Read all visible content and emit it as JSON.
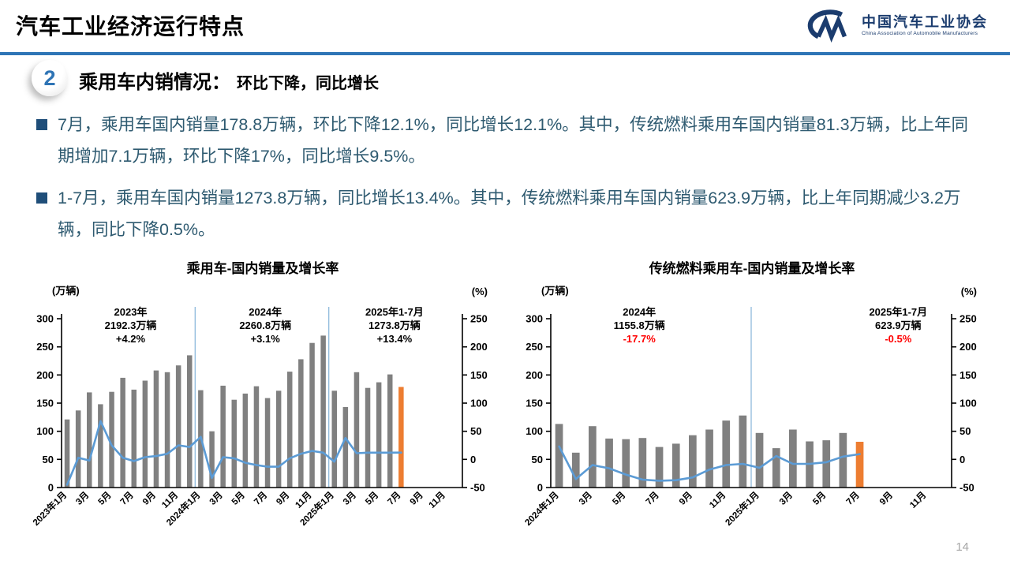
{
  "header": {
    "title": "汽车工业经济运行特点"
  },
  "logo": {
    "mark": "CM-mark",
    "org_cn": "中国汽车工业协会",
    "org_en": "China Association of Automobile Manufacturers"
  },
  "section": {
    "number": "2",
    "title": "乘用车内销情况：",
    "subtitle": "环比下降，同比增长"
  },
  "bullets": [
    {
      "text": "7月，乘用车国内销量178.8万辆，环比下降12.1%，同比增长12.1%。其中，传统燃料乘用车国内销量81.3万辆，比上年同期增加7.1万辆，环比下降17%，同比增长9.5%。"
    },
    {
      "text": "1-7月，乘用车国内销量1273.8万辆，同比增长13.4%。其中，传统燃料乘用车国内销量623.9万辆，比上年同期减少3.2万辆，同比下降0.5%。"
    }
  ],
  "footer": {
    "page_number": "14"
  },
  "colors": {
    "accent_rule": "#2E75B6",
    "logo_navy": "#1B3C6E",
    "body_text": "#2E5A70",
    "bullet_square": "#1F4E79",
    "bar_gray": "#808080",
    "bar_orange": "#ED7D31",
    "line_blue": "#5B9BD5",
    "separator_blue": "#8FBADC",
    "negative_red": "#FF0000",
    "page_gray": "#A6A6A6"
  },
  "chart_data": [
    {
      "type": "bar",
      "title": "乘用车-国内销量及增长率",
      "unit_left": "(万辆)",
      "unit_right": "(%)",
      "legend_position": "none",
      "grid": false,
      "slots": 36,
      "left_range": [
        0,
        300
      ],
      "right_range": [
        -50,
        250
      ],
      "left_ticks": [
        300,
        250,
        200,
        150,
        100,
        50,
        0
      ],
      "right_ticks": [
        250,
        200,
        150,
        100,
        50,
        0,
        -50
      ],
      "x_tick_labels": [
        "2023年1月",
        "3月",
        "5月",
        "7月",
        "9月",
        "11月",
        "2024年1月",
        "3月",
        "5月",
        "7月",
        "9月",
        "11月",
        "2025年1月",
        "3月",
        "5月",
        "7月",
        "9月",
        "11月"
      ],
      "bar_series": {
        "name": "国内销量(万辆)",
        "color": "#808080",
        "highlight_last_color": "#ED7D31",
        "values": [
          121,
          137,
          169,
          148,
          170,
          195,
          174,
          190,
          208,
          205,
          217,
          235,
          173,
          100,
          181,
          156,
          167,
          180,
          159,
          172,
          206,
          228,
          257,
          270,
          172,
          143,
          205,
          177,
          187,
          201,
          178.8
        ]
      },
      "line_series": {
        "name": "同比增长率(%)",
        "color": "#5B9BD5",
        "values": [
          -45,
          3,
          -2,
          68,
          25,
          3,
          -3,
          4,
          6,
          10,
          25,
          22,
          40,
          -33,
          4,
          2,
          -6,
          -10,
          -13,
          -13,
          2,
          10,
          15,
          12,
          -4,
          38,
          11,
          12,
          12,
          12,
          12.1
        ]
      },
      "separators_after_index": [
        11,
        23
      ],
      "separator_color": "#8FBADC",
      "annotations": [
        {
          "lines": [
            "2023年",
            "2192.3万辆",
            "+4.2%"
          ],
          "colors": [
            "#000000",
            "#000000",
            "#000000"
          ],
          "center_slot": 5.7
        },
        {
          "lines": [
            "2024年",
            "2260.8万辆",
            "+3.1%"
          ],
          "colors": [
            "#000000",
            "#000000",
            "#000000"
          ],
          "center_slot": 17.8
        },
        {
          "lines": [
            "2025年1-7月",
            "1273.8万辆",
            "+13.4%"
          ],
          "colors": [
            "#000000",
            "#000000",
            "#000000"
          ],
          "center_slot": 29.4
        }
      ]
    },
    {
      "type": "bar",
      "title": "传统燃料乘用车-国内销量及增长率",
      "unit_left": "(万辆)",
      "unit_right": "(%)",
      "legend_position": "none",
      "grid": false,
      "slots": 24,
      "left_range": [
        0,
        300
      ],
      "right_range": [
        -50,
        250
      ],
      "left_ticks": [
        300,
        250,
        200,
        150,
        100,
        50,
        0
      ],
      "right_ticks": [
        250,
        200,
        150,
        100,
        50,
        0,
        -50
      ],
      "x_tick_labels": [
        "2024年1月",
        "3月",
        "5月",
        "7月",
        "9月",
        "11月",
        "2025年1月",
        "3月",
        "5月",
        "7月",
        "9月",
        "11月"
      ],
      "bar_series": {
        "name": "国内销量(万辆)",
        "color": "#808080",
        "highlight_last_color": "#ED7D31",
        "values": [
          113,
          62,
          109,
          87,
          86,
          88,
          72,
          78,
          93,
          103,
          119,
          128,
          97,
          70,
          103,
          82,
          84,
          97,
          81.3
        ]
      },
      "line_series": {
        "name": "同比增长率(%)",
        "color": "#5B9BD5",
        "values": [
          23,
          -35,
          -10,
          -16,
          -27,
          -36,
          -38,
          -37,
          -32,
          -18,
          -10,
          -8,
          -15,
          6,
          -8,
          -8,
          -5,
          5,
          9.5
        ]
      },
      "separators_after_index": [
        11
      ],
      "separator_color": "#8FBADC",
      "annotations": [
        {
          "lines": [
            "2024年",
            "1155.8万辆",
            "-17.7%"
          ],
          "colors": [
            "#000000",
            "#000000",
            "#FF0000"
          ],
          "center_slot": 4.8
        },
        {
          "lines": [
            "2025年1-7月",
            "623.9万辆",
            "-0.5%"
          ],
          "colors": [
            "#000000",
            "#000000",
            "#FF0000"
          ],
          "center_slot": 20.3
        }
      ]
    }
  ]
}
